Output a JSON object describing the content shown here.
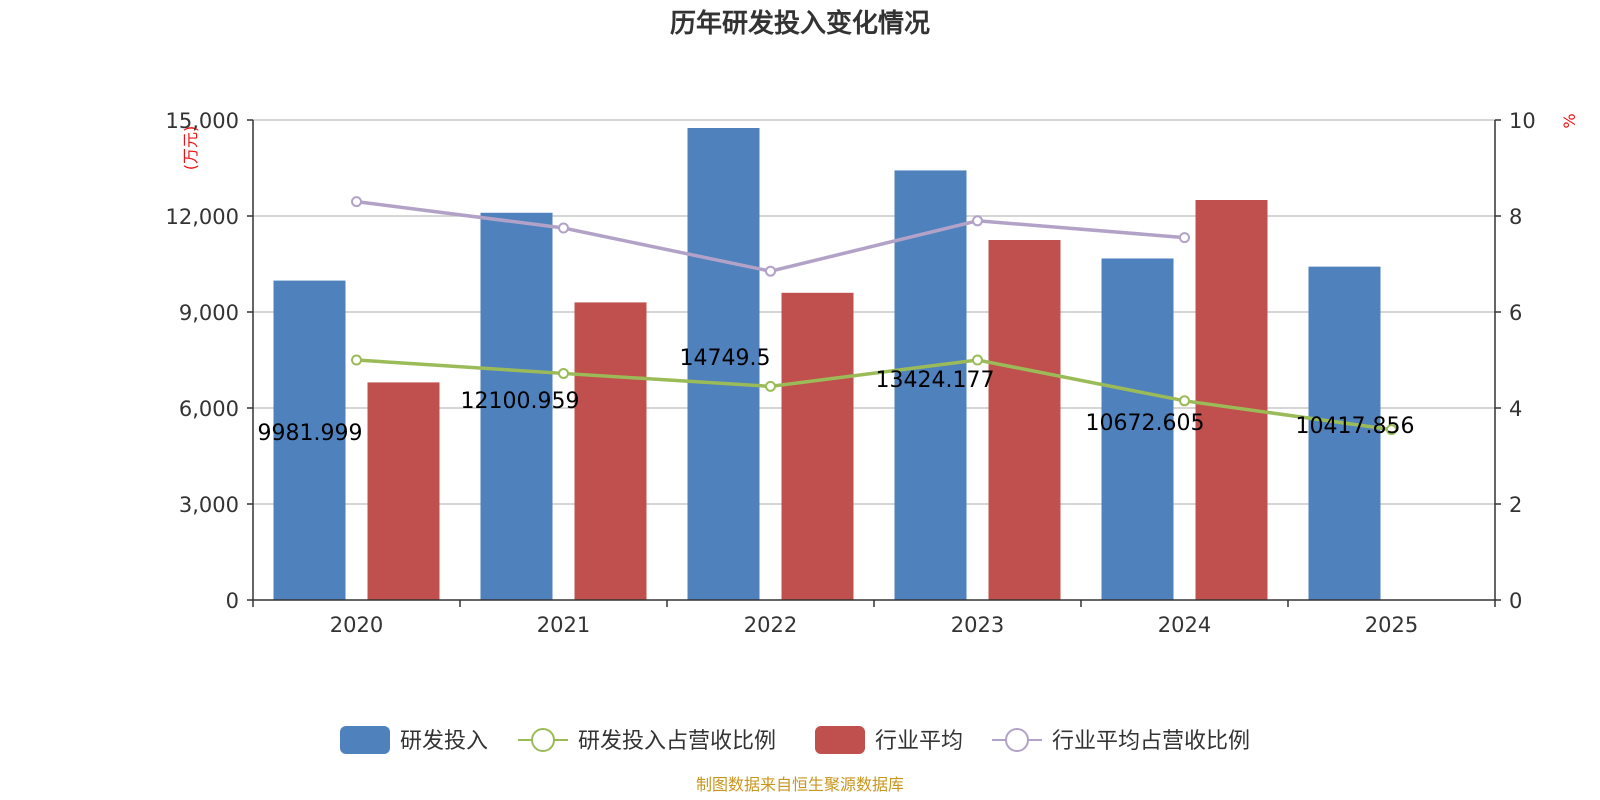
{
  "chart_data": {
    "type": "bar",
    "title": "历年研发投入变化情况",
    "categories": [
      "2020",
      "2021",
      "2022",
      "2023",
      "2024",
      "2025"
    ],
    "y_left": {
      "unit": "(万元)",
      "ylim": [
        0,
        15000
      ],
      "ticks": [
        "0",
        "3,000",
        "6,000",
        "9,000",
        "12,000",
        "15,000"
      ],
      "tick_values": [
        0,
        3000,
        6000,
        9000,
        12000,
        15000
      ]
    },
    "y_right": {
      "unit": "%",
      "ylim": [
        0,
        10
      ],
      "ticks": [
        "0",
        "2",
        "4",
        "6",
        "8",
        "10"
      ],
      "tick_values": [
        0,
        2,
        4,
        6,
        8,
        10
      ]
    },
    "series": [
      {
        "name": "研发投入",
        "kind": "bar",
        "axis": "left",
        "color": "#4f81bd",
        "values": [
          9981.999,
          12100.959,
          14749.5,
          13424.177,
          10672.605,
          10417.856
        ],
        "labels": [
          "9981.999",
          "12100.959",
          "14749.5",
          "13424.177",
          "10672.605",
          "10417.856"
        ]
      },
      {
        "name": "研发投入占营收比例",
        "kind": "line",
        "axis": "right",
        "color": "#9bbb59",
        "values": [
          5.0,
          4.72,
          4.45,
          5.0,
          4.15,
          3.55
        ]
      },
      {
        "name": "行业平均",
        "kind": "bar",
        "axis": "left",
        "color": "#c0504d",
        "values": [
          6800,
          9300,
          9600,
          11250,
          12500,
          null
        ]
      },
      {
        "name": "行业平均占营收比例",
        "kind": "line",
        "axis": "right",
        "color": "#b3a2c7",
        "values": [
          8.3,
          7.75,
          6.85,
          7.9,
          7.55,
          null
        ]
      }
    ],
    "legend_position": "bottom",
    "grid": true
  },
  "source": "制图数据来自恒生聚源数据库"
}
